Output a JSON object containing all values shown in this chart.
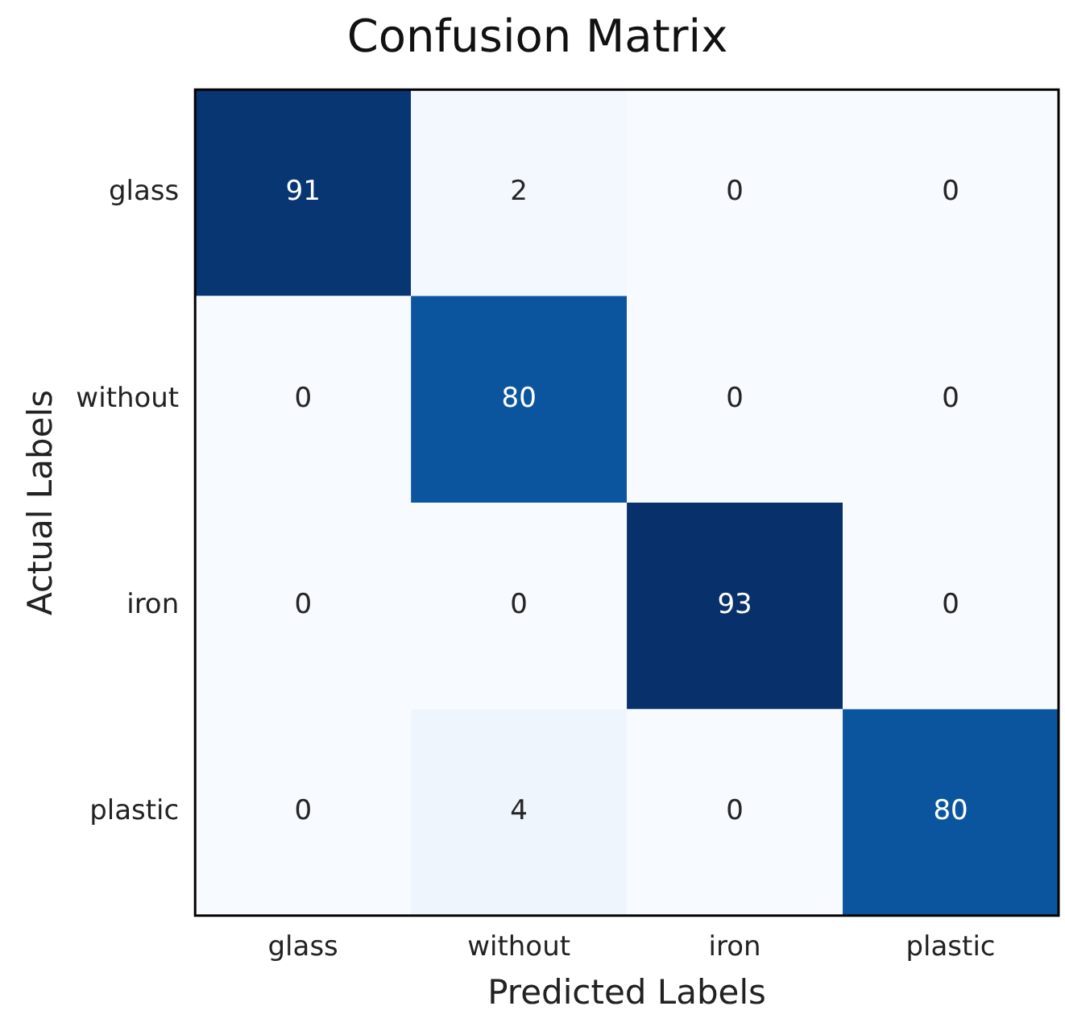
{
  "chart_data": {
    "type": "heatmap",
    "title": "Confusion Matrix",
    "xlabel": "Predicted Labels",
    "ylabel": "Actual Labels",
    "categories": [
      "glass",
      "without",
      "iron",
      "plastic"
    ],
    "y_categories": [
      "glass",
      "without",
      "iron",
      "plastic"
    ],
    "cells": [
      [
        91,
        2,
        0,
        0
      ],
      [
        0,
        80,
        0,
        0
      ],
      [
        0,
        0,
        93,
        0
      ],
      [
        0,
        4,
        0,
        80
      ]
    ],
    "data_labels": true,
    "grid": false,
    "legend": false
  }
}
